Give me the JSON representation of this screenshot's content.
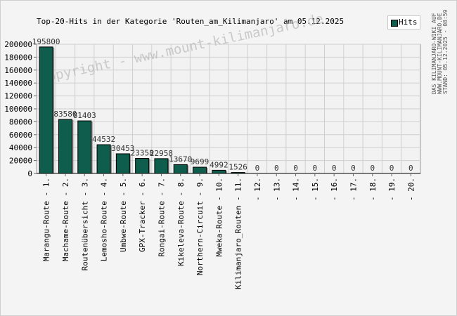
{
  "chart_data": {
    "type": "bar",
    "title": "Top-20-Hits in der Kategorie 'Routen_am_Kilimanjaro' am 05.12.2025",
    "series": [
      {
        "name": "Hits",
        "values": [
          195800,
          83580,
          81403,
          44532,
          30453,
          23358,
          22958,
          13670,
          9699,
          4992,
          1526,
          0,
          0,
          0,
          0,
          0,
          0,
          0,
          0,
          0
        ]
      }
    ],
    "categories": [
      "Marangu-Route - 1.",
      "Machame-Route - 2.",
      "Routenübersicht - 3.",
      "Lemosho-Route - 4.",
      "Umbwe-Route - 5.",
      "GPX-Tracker - 6.",
      "Rongai-Route - 7.",
      "Kikeleva-Route - 8.",
      "Northern-Circuit - 9.",
      "Mweka-Route - 10.",
      "Kilimanjaro_Routen - 11.",
      " - 12.",
      " - 13.",
      " - 14.",
      " - 15.",
      " - 16.",
      " - 17.",
      " - 18.",
      " - 19.",
      " - 20."
    ],
    "value_labels": [
      "195800",
      "83580",
      "81403",
      "44532",
      "30453",
      "23358",
      "22958",
      "13670",
      "9699",
      "4992",
      "1526",
      "0",
      "0",
      "0",
      "0",
      "0",
      "0",
      "0",
      "0",
      "0"
    ],
    "yticks": [
      "0",
      "20000",
      "40000",
      "60000",
      "80000",
      "100000",
      "120000",
      "140000",
      "160000",
      "180000",
      "200000"
    ],
    "ylim": [
      0,
      200000
    ],
    "xlabel": "",
    "ylabel": "",
    "grid": true,
    "legend_position": "top-right",
    "bar_color": "#0f5e4d",
    "watermark": "Copyright - www.mount-kilimanjaro.de",
    "side_text": [
      "DAS KILIMANJARO-WIKI AUF",
      "WWW.MOUNT-KILIMANJARO.DE",
      "STAND: 05.12.2025 - 08:59"
    ]
  }
}
